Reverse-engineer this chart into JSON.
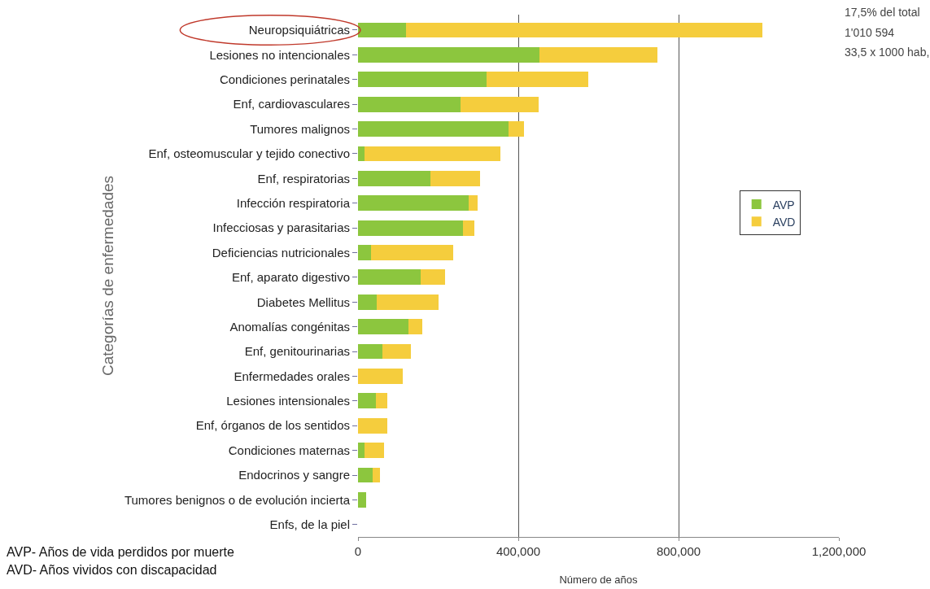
{
  "chart_data": {
    "type": "bar",
    "orientation": "horizontal",
    "stacked": true,
    "categories": [
      "Neuropsiquiátricas",
      "Lesiones no intencionales",
      "Condiciones perinatales",
      "Enf, cardiovasculares",
      "Tumores malignos",
      "Enf, osteomuscular y tejido conectivo",
      "Enf, respiratorias",
      "Infección respiratoria",
      "Infecciosas y parasitarias",
      "Deficiencias nutricionales",
      "Enf, aparato digestivo",
      "Diabetes Mellitus",
      "Anomalías congénitas",
      "Enf, genitourinarias",
      "Enfermedades orales",
      "Lesiones intensionales",
      "Enf, órganos de los sentidos",
      "Condiciones maternas",
      "Endocrinos y sangre",
      "Tumores benignos o de evolución incierta",
      "Enfs, de la piel"
    ],
    "series": [
      {
        "name": "AVP",
        "color": "#8cc63e",
        "values": [
          120000,
          452000,
          321000,
          255000,
          376000,
          16000,
          180000,
          277000,
          261000,
          32000,
          156000,
          46000,
          125000,
          61000,
          0,
          44000,
          0,
          16000,
          36000,
          20000,
          0
        ]
      },
      {
        "name": "AVD",
        "color": "#f5cd3d",
        "values": [
          890000,
          295000,
          253000,
          195000,
          38000,
          340000,
          125000,
          22000,
          30000,
          206000,
          62000,
          156000,
          35000,
          70000,
          111000,
          29000,
          73000,
          49000,
          19000,
          0,
          0
        ]
      }
    ],
    "xlim": [
      0,
      1200000
    ],
    "xticks": [
      {
        "value": 0,
        "label": "0"
      },
      {
        "value": 400000,
        "label": "400,000"
      },
      {
        "value": 800000,
        "label": "800,000"
      },
      {
        "value": 1200000,
        "label": "1,200,000"
      }
    ],
    "grid": "x",
    "legend": "right",
    "xlabel": "Número de años",
    "ylabel": "Categorías de enfermedades",
    "annotations": [
      "17,5% del total",
      "1'010 594",
      "33,5 x 1000 hab,",
      "AVP- Años de vida perdidos por muerte",
      "AVD- Años vividos con discapacidad"
    ]
  }
}
